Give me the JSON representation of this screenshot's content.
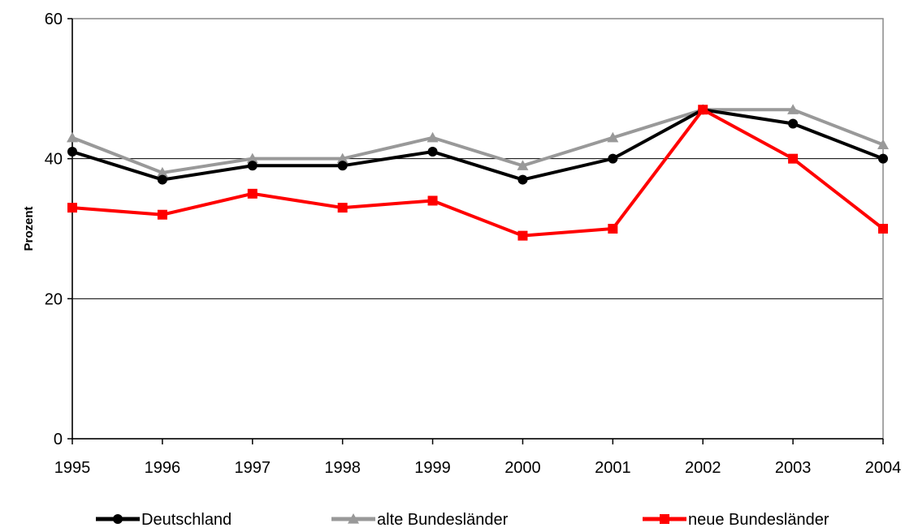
{
  "chart_data": {
    "type": "line",
    "ylabel": "Prozent",
    "ylim": [
      0,
      60
    ],
    "yticks": [
      0,
      20,
      40,
      60
    ],
    "categories": [
      "1995",
      "1996",
      "1997",
      "1998",
      "1999",
      "2000",
      "2001",
      "2002",
      "2003",
      "2004"
    ],
    "grid": "horizontal",
    "legend_position": "bottom",
    "series": [
      {
        "name": "Deutschland",
        "values": [
          41,
          37,
          39,
          39,
          41,
          37,
          40,
          47,
          45,
          40
        ],
        "color": "#000000",
        "marker": "circle"
      },
      {
        "name": "alte Bundesländer",
        "values": [
          43,
          38,
          40,
          40,
          43,
          39,
          43,
          47,
          47,
          42
        ],
        "color": "#999999",
        "marker": "triangle"
      },
      {
        "name": "neue Bundesländer",
        "values": [
          33,
          32,
          35,
          33,
          34,
          29,
          30,
          47,
          40,
          30
        ],
        "color": "#ff0000",
        "marker": "square"
      }
    ]
  }
}
